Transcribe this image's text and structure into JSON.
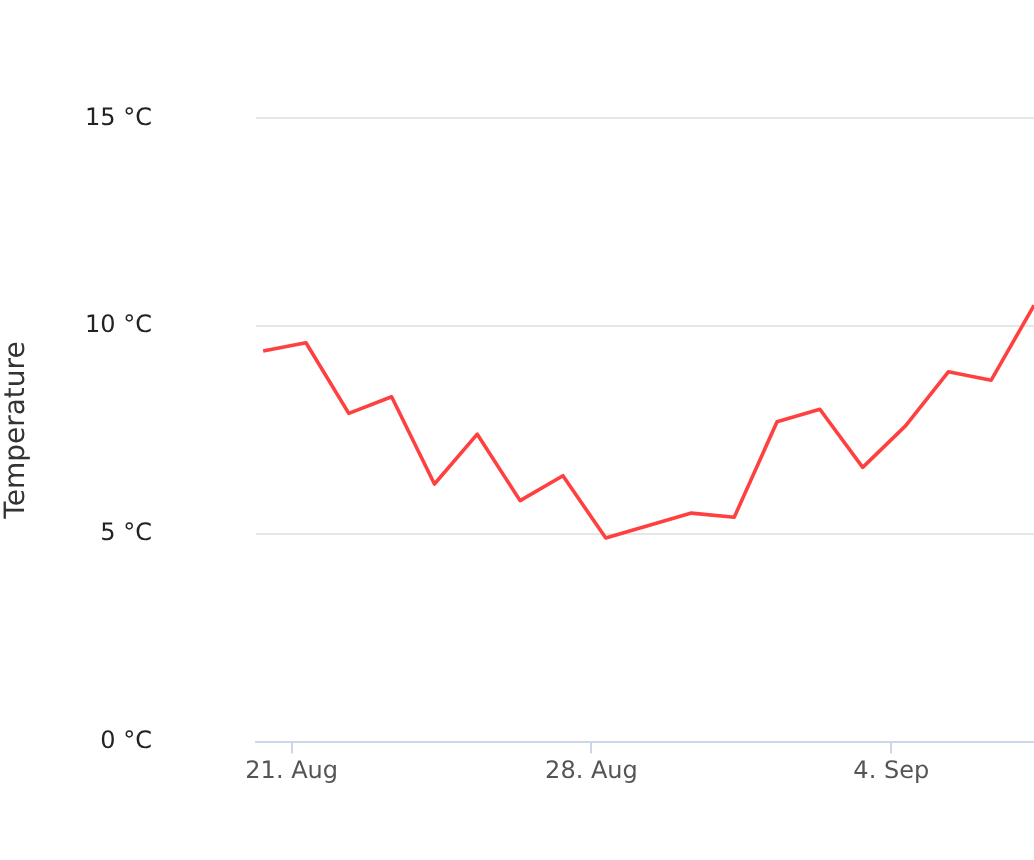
{
  "chart_data": {
    "type": "line",
    "ylabel": "Temperature",
    "x": [
      "--08-20T08:00",
      "--08-21T08:00",
      "--08-22T08:00",
      "--08-23T08:00",
      "--08-24T08:00",
      "--08-25T08:00",
      "--08-26T08:00",
      "--08-27T08:00",
      "--08-28T08:00",
      "--08-29T08:00",
      "--08-30T08:00",
      "--08-31T08:00",
      "--09-01T08:00",
      "--09-02T08:00",
      "--09-03T08:00",
      "--09-04T08:00",
      "--09-05T08:00",
      "--09-06T08:00",
      "--09-07T08:00"
    ],
    "series": [
      {
        "color": "#ff4040",
        "values": [
          9.4,
          9.6,
          7.9,
          8.3,
          6.2,
          7.4,
          5.8,
          6.4,
          4.9,
          5.2,
          5.5,
          5.4,
          7.7,
          8.0,
          6.6,
          7.6,
          8.9,
          8.7,
          10.5
        ]
      }
    ],
    "xlim": [
      "--08-20T04:00",
      "--09-07T08:00"
    ],
    "xticks": [
      {
        "value": "--08-21",
        "label": "21. Aug"
      },
      {
        "value": "--08-28",
        "label": "28. Aug"
      },
      {
        "value": "--09-04",
        "label": "4. Sep"
      }
    ],
    "ylim": [
      0,
      15
    ],
    "yticks": [
      {
        "value": 0,
        "label": "0 °C"
      },
      {
        "value": 5,
        "label": "5 °C"
      },
      {
        "value": 10,
        "label": "10 °C"
      },
      {
        "value": 15,
        "label": "15 °C"
      }
    ],
    "grid": "y",
    "legend": false,
    "marker": "none",
    "line_style": "solid"
  }
}
